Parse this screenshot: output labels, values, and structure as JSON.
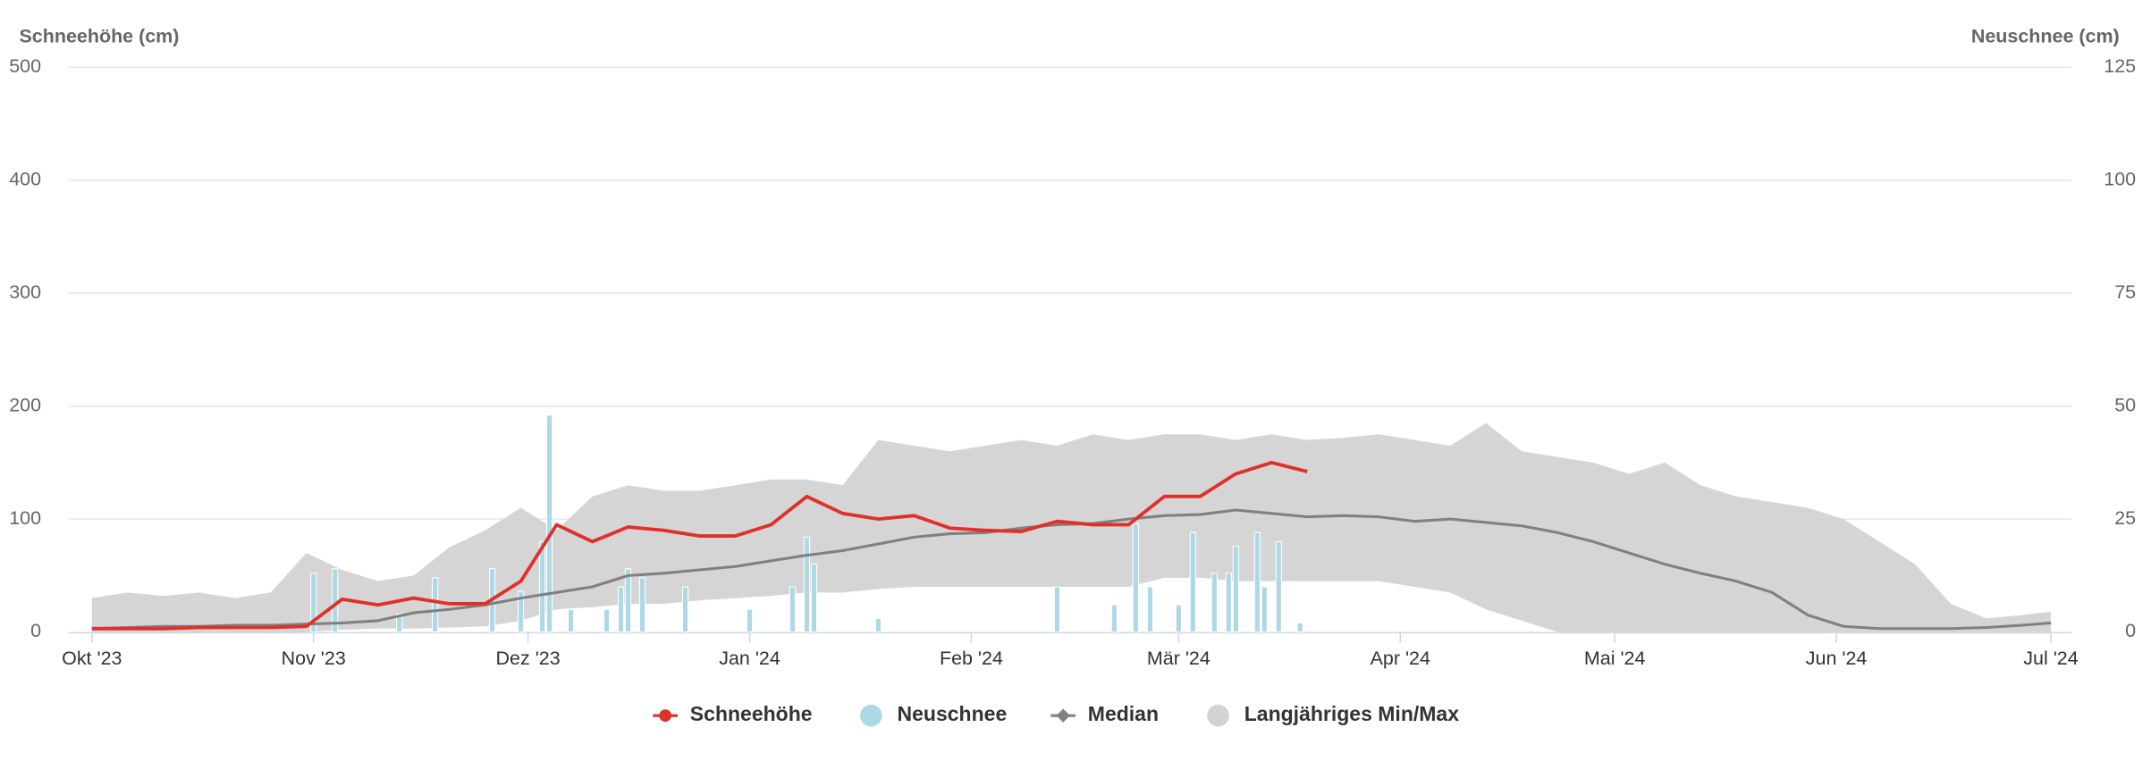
{
  "chart_data": {
    "type": "line",
    "y_title": "Schneehöhe (cm)",
    "y2_title": "Neuschnee (cm)",
    "xlim": [
      0,
      274
    ],
    "xticks": [
      {
        "value": 0,
        "label": "Okt '23"
      },
      {
        "value": 31,
        "label": "Nov '23"
      },
      {
        "value": 61,
        "label": "Dez '23"
      },
      {
        "value": 92,
        "label": "Jan '24"
      },
      {
        "value": 123,
        "label": "Feb '24"
      },
      {
        "value": 152,
        "label": "Mär '24"
      },
      {
        "value": 183,
        "label": "Apr '24"
      },
      {
        "value": 213,
        "label": "Mai '24"
      },
      {
        "value": 244,
        "label": "Jun '24"
      },
      {
        "value": 274,
        "label": "Jul '24"
      }
    ],
    "ylim": [
      0,
      500
    ],
    "yticks": [
      0,
      100,
      200,
      300,
      400,
      500
    ],
    "y2lim": [
      0,
      125
    ],
    "y2ticks": [
      0,
      25,
      50,
      75,
      100,
      125
    ],
    "grid": true,
    "x": [
      0,
      5,
      10,
      15,
      20,
      25,
      30,
      35,
      40,
      45,
      50,
      55,
      60,
      65,
      70,
      75,
      80,
      85,
      90,
      95,
      100,
      105,
      110,
      115,
      120,
      125,
      130,
      135,
      140,
      145,
      150,
      155,
      160,
      165,
      170,
      175,
      180,
      185,
      190,
      195,
      200,
      205,
      210,
      215,
      220,
      225,
      230,
      235,
      240,
      245,
      250,
      255,
      260,
      265,
      270,
      274
    ],
    "series": [
      {
        "name": "Langjähriges Min/Max",
        "type": "arearange",
        "color": "#d3d3d3",
        "low": [
          0,
          0,
          0,
          0,
          0,
          0,
          0,
          2,
          3,
          3,
          4,
          5,
          10,
          20,
          22,
          25,
          25,
          28,
          30,
          32,
          35,
          35,
          38,
          40,
          40,
          40,
          40,
          40,
          40,
          40,
          48,
          48,
          45,
          45,
          45,
          45,
          45,
          40,
          35,
          20,
          10,
          0,
          0,
          0,
          0,
          0,
          0,
          0,
          0,
          0,
          0,
          0,
          0,
          0,
          0,
          0
        ],
        "high": [
          30,
          35,
          32,
          35,
          30,
          35,
          70,
          55,
          45,
          50,
          75,
          90,
          110,
          90,
          120,
          130,
          125,
          125,
          130,
          135,
          135,
          130,
          170,
          165,
          160,
          165,
          170,
          165,
          175,
          170,
          175,
          175,
          170,
          175,
          170,
          172,
          175,
          170,
          165,
          185,
          160,
          155,
          150,
          140,
          150,
          130,
          120,
          115,
          110,
          100,
          80,
          60,
          25,
          12,
          15,
          18
        ]
      },
      {
        "name": "Neuschnee",
        "type": "bar",
        "axis": "y2",
        "color": "#add8e6",
        "x": [
          31,
          34,
          43,
          48,
          56,
          60,
          63,
          64,
          67,
          72,
          74,
          75,
          77,
          83,
          92,
          98,
          100,
          101,
          110,
          135,
          143,
          146,
          148,
          152,
          154,
          157,
          159,
          160,
          163,
          164,
          166,
          169
        ],
        "values": [
          13,
          14,
          4,
          12,
          14,
          9,
          20,
          48,
          5,
          5,
          10,
          14,
          12,
          10,
          5,
          10,
          21,
          15,
          3,
          10,
          6,
          24,
          10,
          6,
          22,
          13,
          13,
          19,
          22,
          10,
          20,
          2
        ]
      },
      {
        "name": "Median",
        "type": "line",
        "color": "#808080",
        "values": [
          3,
          4,
          5,
          5,
          6,
          6,
          7,
          8,
          10,
          17,
          20,
          24,
          30,
          35,
          40,
          50,
          52,
          55,
          58,
          63,
          68,
          72,
          78,
          84,
          87,
          88,
          92,
          95,
          96,
          100,
          103,
          104,
          108,
          105,
          102,
          103,
          102,
          98,
          100,
          97,
          94,
          88,
          80,
          70,
          60,
          52,
          45,
          35,
          15,
          5,
          3,
          3,
          3,
          4,
          6,
          8
        ]
      },
      {
        "name": "Schneehöhe",
        "type": "line",
        "color": "#e0302a",
        "values": [
          3,
          3,
          3,
          4,
          4,
          4,
          5,
          29,
          24,
          30,
          25,
          25,
          45,
          95,
          80,
          93,
          90,
          85,
          85,
          95,
          120,
          105,
          100,
          103,
          92,
          90,
          89,
          98,
          95,
          95,
          120,
          120,
          140,
          150,
          142,
          null,
          null,
          null,
          null,
          null,
          null,
          null,
          null,
          null,
          null,
          null,
          null,
          null,
          null,
          null,
          null,
          null,
          null,
          null,
          null,
          null
        ]
      }
    ]
  }
}
